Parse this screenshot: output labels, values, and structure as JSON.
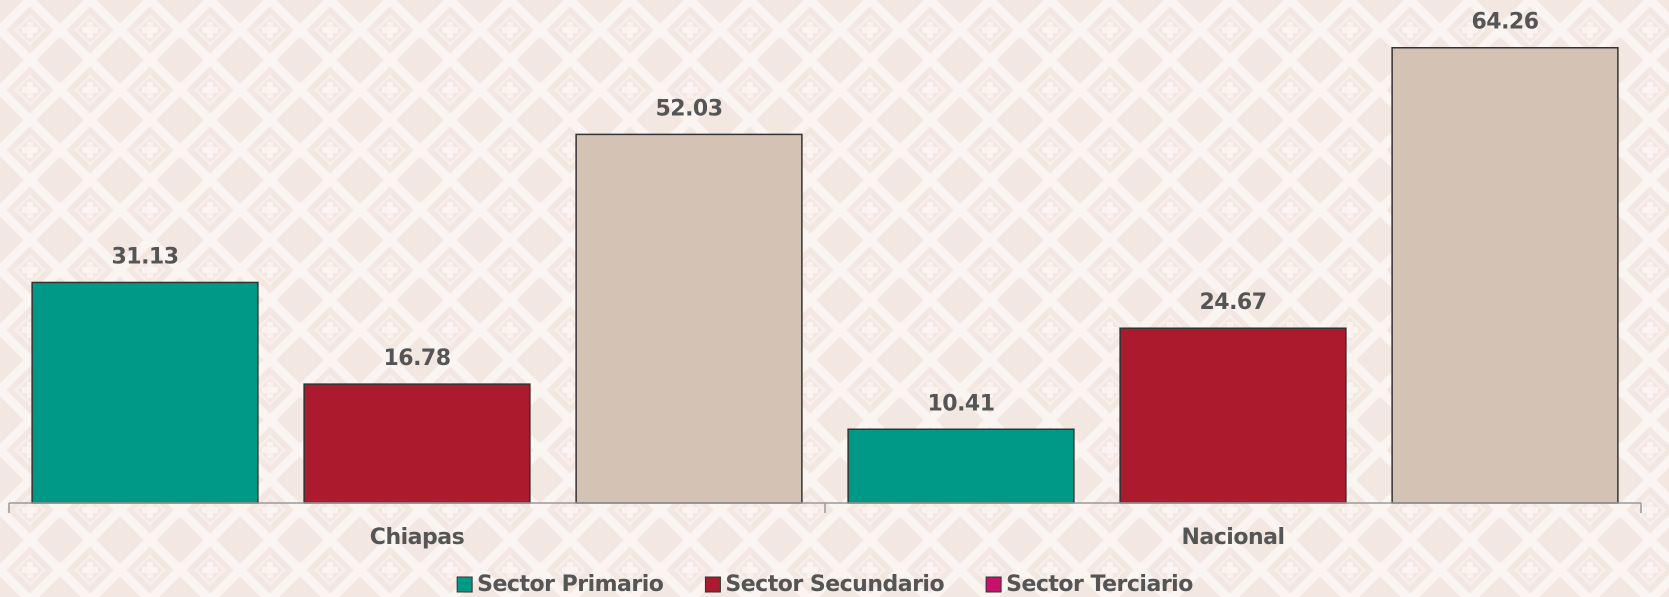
{
  "chart_data": {
    "type": "bar",
    "categories": [
      "Chiapas",
      "Nacional"
    ],
    "series": [
      {
        "name": "Sector Primario",
        "color": "#009887",
        "legend_color": "#009887",
        "values": [
          31.13,
          10.41
        ]
      },
      {
        "name": "Sector Secundario",
        "color": "#ab1a2d",
        "legend_color": "#ab1a2d",
        "values": [
          16.78,
          24.67
        ]
      },
      {
        "name": "Sector Terciario",
        "color": "#d4c2b4",
        "legend_color": "#c8106f",
        "values": [
          52.03,
          64.26
        ]
      }
    ],
    "ylim": [
      0,
      71
    ],
    "legend": "bottom"
  }
}
